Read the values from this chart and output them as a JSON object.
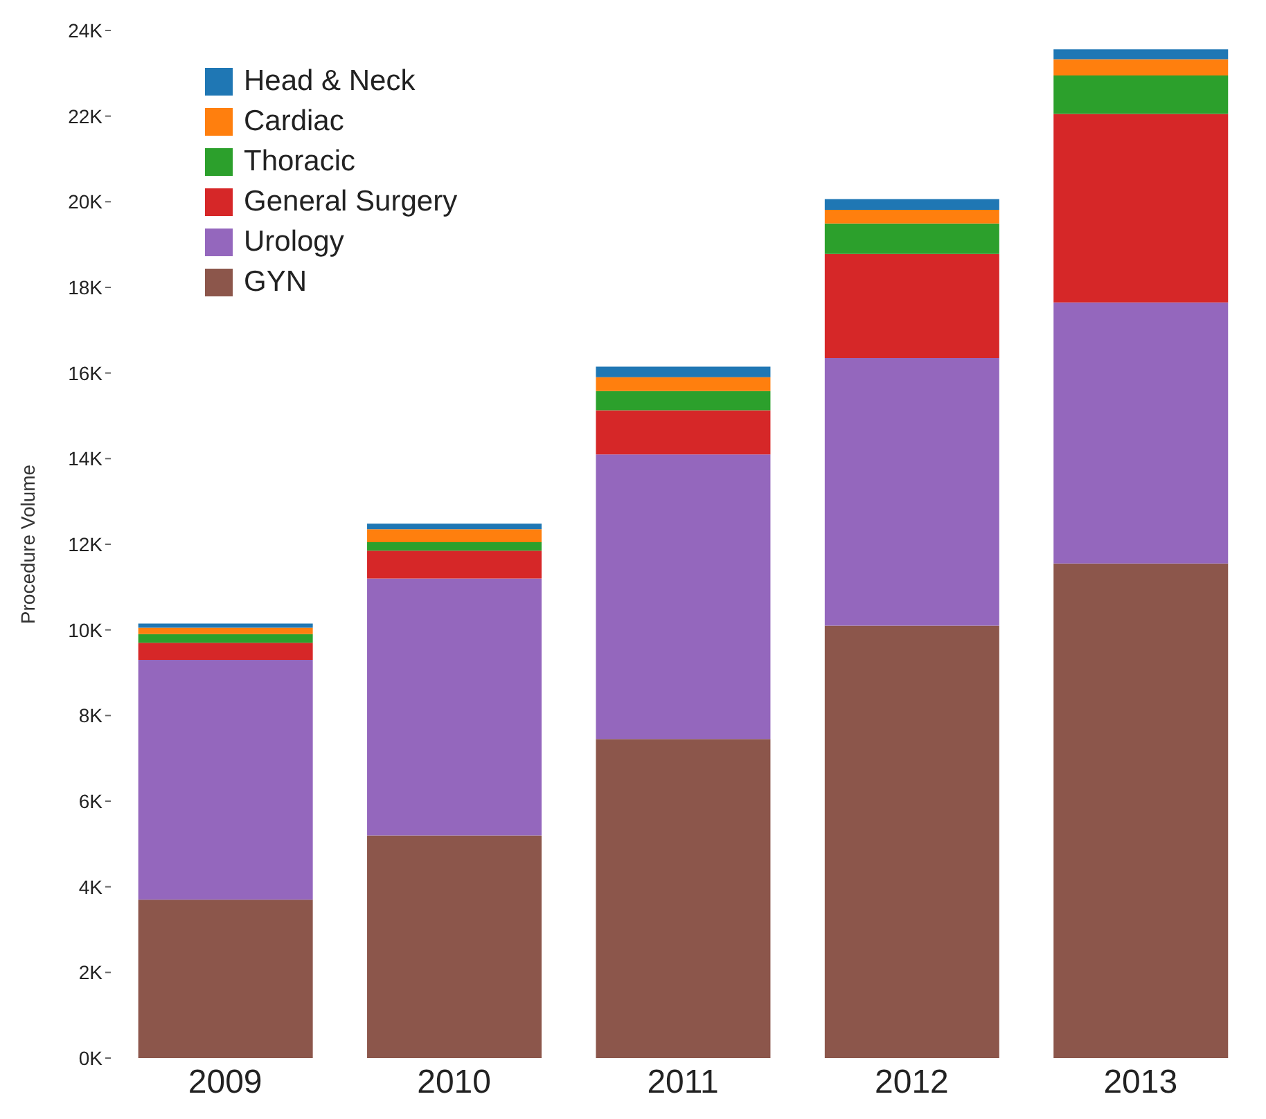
{
  "chart_data": {
    "type": "bar",
    "stacked": true,
    "ylabel": "Procedure Volume",
    "categories": [
      "2009",
      "2010",
      "2011",
      "2012",
      "2013"
    ],
    "series": [
      {
        "name": "GYN",
        "color": "#8c564b",
        "values": [
          3700,
          5200,
          7450,
          10100,
          11550
        ]
      },
      {
        "name": "Urology",
        "color": "#9467bd",
        "values": [
          5600,
          6000,
          6650,
          6250,
          6100
        ]
      },
      {
        "name": "General Surgery",
        "color": "#d62728",
        "values": [
          400,
          650,
          1030,
          2430,
          4400
        ]
      },
      {
        "name": "Thoracic",
        "color": "#2ca02c",
        "values": [
          200,
          200,
          450,
          710,
          900
        ]
      },
      {
        "name": "Cardiac",
        "color": "#ff7f0e",
        "values": [
          150,
          300,
          320,
          320,
          380
        ]
      },
      {
        "name": "Head & Neck",
        "color": "#1f77b4",
        "values": [
          100,
          130,
          250,
          250,
          230
        ]
      }
    ],
    "ylim": [
      0,
      24000
    ],
    "yticks": [
      {
        "value": 0,
        "label": "0K"
      },
      {
        "value": 2000,
        "label": "2K"
      },
      {
        "value": 4000,
        "label": "4K"
      },
      {
        "value": 6000,
        "label": "6K"
      },
      {
        "value": 8000,
        "label": "8K"
      },
      {
        "value": 10000,
        "label": "10K"
      },
      {
        "value": 12000,
        "label": "12K"
      },
      {
        "value": 14000,
        "label": "14K"
      },
      {
        "value": 16000,
        "label": "16K"
      },
      {
        "value": 18000,
        "label": "18K"
      },
      {
        "value": 20000,
        "label": "20K"
      },
      {
        "value": 22000,
        "label": "22K"
      },
      {
        "value": 24000,
        "label": "24K"
      }
    ],
    "grid": false,
    "legend": "top left"
  }
}
